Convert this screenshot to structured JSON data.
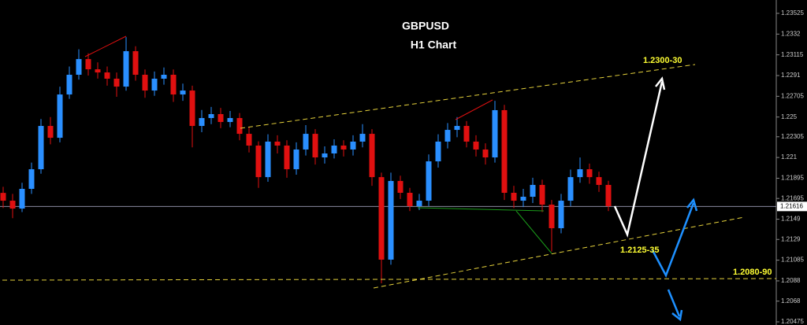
{
  "chart_data": {
    "type": "candlestick",
    "title": "GBPUSD",
    "subtitle": "H1 Chart",
    "annotations": [
      "1.2300-30",
      "1.2125-35",
      "1.2080-90"
    ],
    "up_color": "#2a8fff",
    "down_color": "#e01010",
    "current_price": 1.21616,
    "ylim": [
      1.20444,
      1.23657
    ],
    "yticks": [
      1.23525,
      1.2332,
      1.23115,
      1.2291,
      1.22705,
      1.225,
      1.22305,
      1.221,
      1.21895,
      1.21695,
      1.2149,
      1.2129,
      1.21085,
      1.2088,
      1.2068,
      1.20475
    ],
    "open": [
      1.2175,
      1.21673,
      1.21595,
      1.2179,
      1.21984,
      1.22412,
      1.22295,
      1.22723,
      1.22918,
      1.23073,
      1.22972,
      1.22941,
      1.22879,
      1.22801,
      1.23151,
      1.22918,
      1.22762,
      1.22879,
      1.22918,
      1.22723,
      1.22762,
      1.22412,
      1.2249,
      1.22529,
      1.22451,
      1.2249,
      1.22334,
      1.22218,
      1.21906,
      1.22257,
      1.22218,
      1.21984,
      1.22179,
      1.22334,
      1.22101,
      1.2214,
      1.22218,
      1.22179,
      1.22257,
      1.22334,
      1.21906,
      1.2109,
      1.21868,
      1.21751,
      1.21619,
      1.21673,
      1.22062,
      1.22257,
      1.22373,
      1.22412,
      1.22257,
      1.22179,
      1.22101,
      1.22568,
      1.21751,
      1.21673,
      1.21712,
      1.21829,
      1.21634,
      1.21401,
      1.21673,
      1.21906,
      1.21984,
      1.21906,
      1.21829
    ],
    "high": [
      1.2181,
      1.2174,
      1.2185,
      1.2205,
      1.2248,
      1.225,
      1.228,
      1.23,
      1.2317,
      1.2313,
      1.2304,
      1.23,
      1.2294,
      1.2329,
      1.232,
      1.2297,
      1.2295,
      1.2299,
      1.2297,
      1.2283,
      1.2281,
      1.2257,
      1.226,
      1.2259,
      1.2256,
      1.2254,
      1.224,
      1.2226,
      1.2233,
      1.2232,
      1.2227,
      1.2225,
      1.2242,
      1.2238,
      1.2221,
      1.2228,
      1.2227,
      1.2232,
      1.2243,
      1.2238,
      1.2195,
      1.2195,
      1.2192,
      1.218,
      1.2174,
      1.2213,
      1.2233,
      1.2244,
      1.225,
      1.2246,
      1.2232,
      1.2224,
      1.2266,
      1.2262,
      1.2182,
      1.2179,
      1.219,
      1.2188,
      1.2168,
      1.2174,
      1.2198,
      1.221,
      1.2204,
      1.2196,
      1.2187
    ],
    "low": [
      1.216,
      1.215,
      1.2156,
      1.2174,
      1.2194,
      1.2223,
      1.2225,
      1.2268,
      1.2287,
      1.2291,
      1.2288,
      1.2281,
      1.227,
      1.2276,
      1.2286,
      1.2269,
      1.2271,
      1.2282,
      1.2265,
      1.2266,
      1.222,
      1.2235,
      1.2243,
      1.2239,
      1.224,
      1.2227,
      1.2215,
      1.218,
      1.2186,
      1.2214,
      1.219,
      1.2193,
      1.2212,
      1.2203,
      1.2204,
      1.2209,
      1.2211,
      1.2212,
      1.222,
      1.2182,
      1.20856,
      1.2104,
      1.2169,
      1.2157,
      1.2158,
      1.2162,
      1.22,
      1.2219,
      1.223,
      1.222,
      1.2211,
      1.2203,
      1.2205,
      1.2168,
      1.216,
      1.2161,
      1.2165,
      1.2156,
      1.2117,
      1.2135,
      1.2162,
      1.2185,
      1.2184,
      1.2176,
      1.2157
    ],
    "close": [
      1.21673,
      1.21595,
      1.2179,
      1.21984,
      1.22412,
      1.22295,
      1.22723,
      1.22918,
      1.23073,
      1.22972,
      1.22941,
      1.22879,
      1.22801,
      1.23151,
      1.22918,
      1.22762,
      1.22879,
      1.22918,
      1.22723,
      1.22762,
      1.22412,
      1.2249,
      1.22529,
      1.22451,
      1.2249,
      1.22334,
      1.22218,
      1.21906,
      1.22257,
      1.22218,
      1.21984,
      1.22179,
      1.22334,
      1.22101,
      1.2214,
      1.22218,
      1.22179,
      1.22257,
      1.22334,
      1.21906,
      1.2109,
      1.21868,
      1.21751,
      1.21619,
      1.21673,
      1.22062,
      1.22257,
      1.22373,
      1.22412,
      1.22257,
      1.22179,
      1.22101,
      1.22568,
      1.21751,
      1.21673,
      1.21712,
      1.21829,
      1.21634,
      1.21401,
      1.21673,
      1.21906,
      1.21984,
      1.21906,
      1.21829,
      1.21619
    ]
  }
}
